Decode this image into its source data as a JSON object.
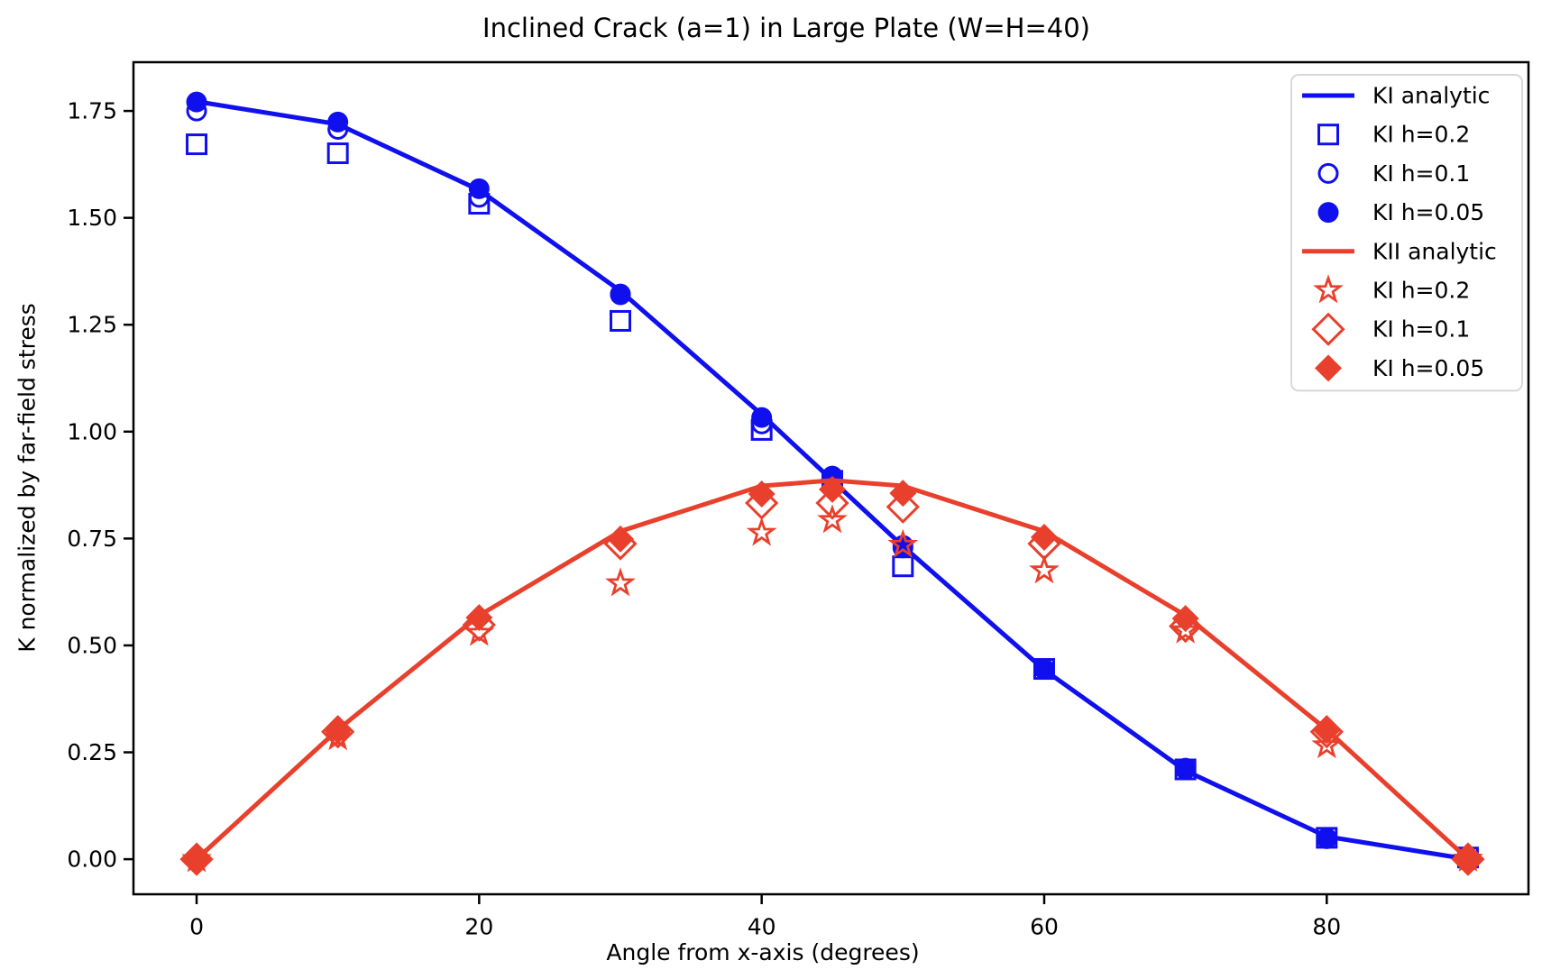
{
  "colors": {
    "ki": "#1010ee",
    "kii": "#e8402c",
    "axis": "#000000",
    "legend_border": "#d8d8d8",
    "background": "#ffffff"
  },
  "chart_data": {
    "type": "line",
    "title": "Inclined Crack (a=1) in Large Plate (W=H=40)",
    "xlabel": "Angle from x-axis (degrees)",
    "ylabel": "K normalized by far-field stress",
    "xlim": [
      -4.47,
      94.28
    ],
    "ylim": [
      -0.082,
      1.864
    ],
    "xticks": [
      0,
      20,
      40,
      60,
      80
    ],
    "yticks": [
      0.0,
      0.25,
      0.5,
      0.75,
      1.0,
      1.25,
      1.5,
      1.75
    ],
    "grid": false,
    "legend_position": "upper right",
    "x": [
      0,
      10,
      20,
      30,
      40,
      45,
      50,
      60,
      70,
      80,
      90
    ],
    "series": [
      {
        "name": "KI analytic",
        "style": "line",
        "color": "ki",
        "values": [
          1.772,
          1.719,
          1.565,
          1.329,
          1.04,
          0.886,
          0.732,
          0.443,
          0.207,
          0.053,
          0.0
        ]
      },
      {
        "name": "KI h=0.2",
        "style": "open-square",
        "color": "ki",
        "values": [
          1.672,
          1.651,
          1.533,
          1.259,
          1.004,
          0.885,
          0.685,
          0.445,
          0.21,
          0.05,
          0.004
        ]
      },
      {
        "name": "KI h=0.1",
        "style": "open-circle",
        "color": "ki",
        "values": [
          1.75,
          1.707,
          1.548,
          1.32,
          1.018,
          0.893,
          0.728,
          0.444,
          0.21,
          0.049,
          0.002
        ]
      },
      {
        "name": "KI h=0.05",
        "style": "filled-circle",
        "color": "ki",
        "values": [
          1.771,
          1.724,
          1.568,
          1.322,
          1.033,
          0.896,
          0.734,
          0.445,
          0.213,
          0.048,
          0.001
        ]
      },
      {
        "name": "KII analytic",
        "style": "line",
        "color": "kii",
        "values": [
          0.0,
          0.303,
          0.57,
          0.767,
          0.873,
          0.886,
          0.873,
          0.767,
          0.57,
          0.303,
          0.0
        ]
      },
      {
        "name": "KI h=0.2",
        "style": "open-star",
        "color": "kii",
        "values": [
          0.0,
          0.285,
          0.529,
          0.645,
          0.763,
          0.793,
          0.735,
          0.675,
          0.535,
          0.266,
          0.001
        ]
      },
      {
        "name": "KI h=0.1",
        "style": "open-diamond",
        "color": "kii",
        "values": [
          0.0,
          0.298,
          0.548,
          0.738,
          0.833,
          0.833,
          0.824,
          0.738,
          0.545,
          0.298,
          0.0
        ]
      },
      {
        "name": "KI h=0.05",
        "style": "filled-diamond",
        "color": "kii",
        "values": [
          0.0,
          0.301,
          0.565,
          0.749,
          0.854,
          0.865,
          0.856,
          0.753,
          0.563,
          0.301,
          0.0
        ]
      }
    ]
  }
}
